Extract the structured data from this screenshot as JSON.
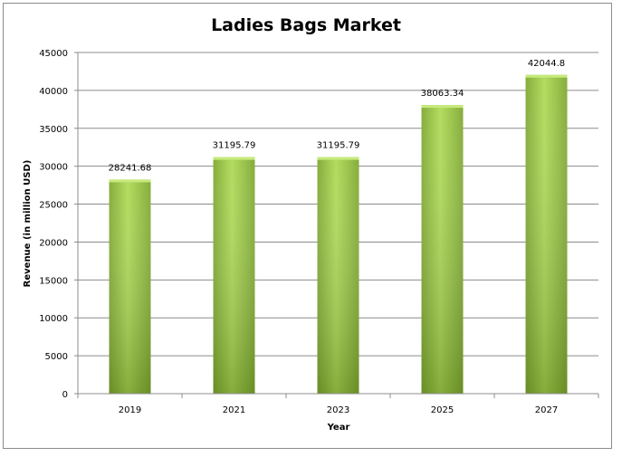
{
  "chart_data": {
    "type": "bar",
    "title": "Ladies Bags Market",
    "xlabel": "Year",
    "ylabel": "Revenue (in million USD)",
    "categories": [
      "2019",
      "2021",
      "2023",
      "2025",
      "2027"
    ],
    "values": [
      28241.68,
      31195.79,
      31195.79,
      38063.34,
      42044.8
    ],
    "value_labels": [
      "28241.68",
      "31195.79",
      "31195.79",
      "38063.34",
      "42044.8"
    ],
    "ylim": [
      0,
      45000
    ],
    "yticks": [
      0,
      5000,
      10000,
      15000,
      20000,
      25000,
      30000,
      35000,
      40000,
      45000
    ],
    "grid": true,
    "legend": "none",
    "colors": {
      "bar_light": "#a9d651",
      "bar_dark": "#6b8f26",
      "gridline": "#8c8c8c",
      "axis": "#8c8c8c"
    }
  }
}
